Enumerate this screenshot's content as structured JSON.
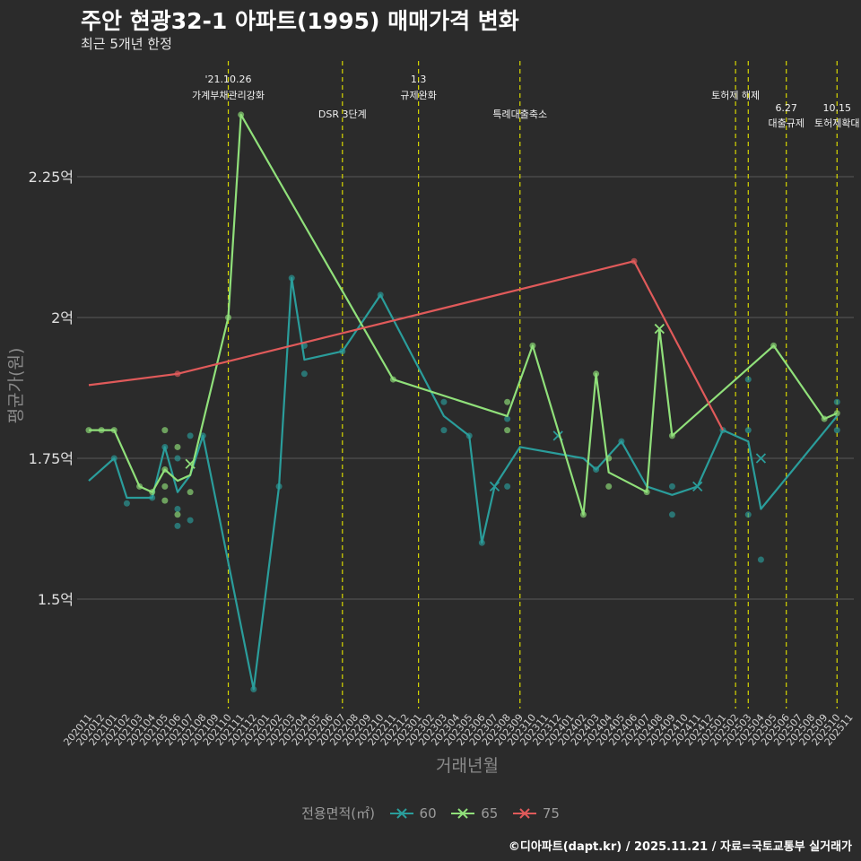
{
  "title": "주안 현광32-1 아파트(1995) 매매가격 변화",
  "subtitle": "최근 5개년 한정",
  "caption": "©디아파트(dapt.kr) / 2025.11.21 / 자료=국토교통부 실거래가",
  "legend": {
    "title": "전용면적(㎡)",
    "items": [
      {
        "label": "60",
        "color": "#2a9d9b"
      },
      {
        "label": "65",
        "color": "#90e07a"
      },
      {
        "label": "75",
        "color": "#e05a5a"
      }
    ]
  },
  "chart_data": {
    "type": "line",
    "title": "주안 현광32-1 아파트(1995) 매매가격 변화",
    "xlabel": "거래년월",
    "ylabel": "평균가(원)",
    "ylim": [
      1.3,
      2.48
    ],
    "yticks": [
      1.5,
      1.75,
      2.0,
      2.25
    ],
    "ytick_labels": [
      "1.5억",
      "1.75억",
      "2억",
      "2.25억"
    ],
    "categories": [
      "202011",
      "202012",
      "202101",
      "202102",
      "202103",
      "202104",
      "202105",
      "202106",
      "202107",
      "202108",
      "202109",
      "202110",
      "202111",
      "202112",
      "202201",
      "202202",
      "202203",
      "202204",
      "202205",
      "202206",
      "202207",
      "202208",
      "202209",
      "202210",
      "202211",
      "202212",
      "202301",
      "202302",
      "202303",
      "202304",
      "202305",
      "202306",
      "202307",
      "202308",
      "202309",
      "202310",
      "202311",
      "202312",
      "202401",
      "202402",
      "202403",
      "202404",
      "202405",
      "202406",
      "202407",
      "202408",
      "202409",
      "202410",
      "202411",
      "202412",
      "202501",
      "202502",
      "202503",
      "202504",
      "202505",
      "202506",
      "202507",
      "202508",
      "202509",
      "202510",
      "202511"
    ],
    "series": [
      {
        "name": "60",
        "color": "#2a9d9b",
        "line": [
          [
            "202011",
            1.71
          ],
          [
            "202101",
            1.75
          ],
          [
            "202102",
            1.68
          ],
          [
            "202104",
            1.68
          ],
          [
            "202105",
            1.77
          ],
          [
            "202106",
            1.69
          ],
          [
            "202107",
            1.72
          ],
          [
            "202108",
            1.79
          ],
          [
            "202112",
            1.34
          ],
          [
            "202202",
            1.7
          ],
          [
            "202203",
            2.07
          ],
          [
            "202204",
            1.925
          ],
          [
            "202207",
            1.94
          ],
          [
            "202210",
            2.04
          ],
          [
            "202303",
            1.825
          ],
          [
            "202305",
            1.79
          ],
          [
            "202306",
            1.6
          ],
          [
            "202307",
            1.7
          ],
          [
            "202309",
            1.77
          ],
          [
            "202402",
            1.75
          ],
          [
            "202403",
            1.73
          ],
          [
            "202405",
            1.78
          ],
          [
            "202407",
            1.7
          ],
          [
            "202409",
            1.685
          ],
          [
            "202411",
            1.7
          ],
          [
            "202501",
            1.8
          ],
          [
            "202503",
            1.78
          ],
          [
            "202504",
            1.66
          ],
          [
            "202510",
            1.825
          ]
        ],
        "points": [
          [
            "202101",
            1.75
          ],
          [
            "202102",
            1.67
          ],
          [
            "202104",
            1.68
          ],
          [
            "202105",
            1.77
          ],
          [
            "202106",
            1.75
          ],
          [
            "202106",
            1.66
          ],
          [
            "202106",
            1.63
          ],
          [
            "202107",
            1.79
          ],
          [
            "202107",
            1.64
          ],
          [
            "202108",
            1.79
          ],
          [
            "202112",
            1.34
          ],
          [
            "202202",
            1.7
          ],
          [
            "202203",
            2.07
          ],
          [
            "202204",
            1.95
          ],
          [
            "202204",
            1.9
          ],
          [
            "202207",
            1.94
          ],
          [
            "202210",
            2.04
          ],
          [
            "202303",
            1.85
          ],
          [
            "202303",
            1.8
          ],
          [
            "202305",
            1.79
          ],
          [
            "202306",
            1.6
          ],
          [
            "202308",
            1.82
          ],
          [
            "202308",
            1.7
          ],
          [
            "202403",
            1.73
          ],
          [
            "202405",
            1.78
          ],
          [
            "202409",
            1.7
          ],
          [
            "202409",
            1.65
          ],
          [
            "202501",
            1.8
          ],
          [
            "202503",
            1.89
          ],
          [
            "202503",
            1.8
          ],
          [
            "202503",
            1.65
          ],
          [
            "202504",
            1.57
          ],
          [
            "202510",
            1.85
          ],
          [
            "202510",
            1.8
          ]
        ],
        "cross": [
          [
            "202307",
            1.7
          ],
          [
            "202312",
            1.79
          ],
          [
            "202411",
            1.7
          ],
          [
            "202504",
            1.75
          ]
        ]
      },
      {
        "name": "65",
        "color": "#90e07a",
        "line": [
          [
            "202011",
            1.8
          ],
          [
            "202012",
            1.8
          ],
          [
            "202101",
            1.8
          ],
          [
            "202103",
            1.7
          ],
          [
            "202104",
            1.69
          ],
          [
            "202105",
            1.73
          ],
          [
            "202106",
            1.71
          ],
          [
            "202107",
            1.72
          ],
          [
            "202110",
            2.0
          ],
          [
            "202111",
            2.36
          ],
          [
            "202211",
            1.89
          ],
          [
            "202308",
            1.825
          ],
          [
            "202310",
            1.95
          ],
          [
            "202402",
            1.65
          ],
          [
            "202403",
            1.9
          ],
          [
            "202404",
            1.725
          ],
          [
            "202407",
            1.69
          ],
          [
            "202408",
            1.98
          ],
          [
            "202409",
            1.79
          ],
          [
            "202505",
            1.95
          ],
          [
            "202509",
            1.82
          ],
          [
            "202510",
            1.83
          ]
        ],
        "points": [
          [
            "202011",
            1.8
          ],
          [
            "202012",
            1.8
          ],
          [
            "202101",
            1.8
          ],
          [
            "202103",
            1.7
          ],
          [
            "202104",
            1.69
          ],
          [
            "202105",
            1.8
          ],
          [
            "202105",
            1.73
          ],
          [
            "202105",
            1.7
          ],
          [
            "202105",
            1.675
          ],
          [
            "202106",
            1.77
          ],
          [
            "202106",
            1.65
          ],
          [
            "202107",
            1.69
          ],
          [
            "202110",
            2.0
          ],
          [
            "202111",
            2.36
          ],
          [
            "202211",
            1.89
          ],
          [
            "202308",
            1.85
          ],
          [
            "202308",
            1.8
          ],
          [
            "202310",
            1.95
          ],
          [
            "202402",
            1.65
          ],
          [
            "202403",
            1.9
          ],
          [
            "202404",
            1.75
          ],
          [
            "202404",
            1.7
          ],
          [
            "202407",
            1.69
          ],
          [
            "202409",
            1.79
          ],
          [
            "202505",
            1.95
          ],
          [
            "202509",
            1.82
          ],
          [
            "202510",
            1.83
          ]
        ],
        "cross": [
          [
            "202107",
            1.74
          ],
          [
            "202408",
            1.98
          ]
        ]
      },
      {
        "name": "75",
        "color": "#e05a5a",
        "line": [
          [
            "202011",
            1.88
          ],
          [
            "202106",
            1.9
          ],
          [
            "202406",
            2.1
          ],
          [
            "202501",
            1.8
          ]
        ],
        "points": [
          [
            "202106",
            1.9
          ],
          [
            "202406",
            2.1
          ]
        ],
        "cross": []
      }
    ],
    "events": [
      {
        "month": "202110",
        "label1": "'21.10.26",
        "label2": "가계부채관리강화",
        "row": 0
      },
      {
        "month": "202207",
        "label1": "",
        "label2": "DSR 3단계",
        "row": 1
      },
      {
        "month": "202301",
        "label1": "1.3",
        "label2": "규제완화",
        "row": 0
      },
      {
        "month": "202309",
        "label1": "",
        "label2": "특례대출축소",
        "row": 1
      },
      {
        "month": "202502",
        "label1": "",
        "label2": "토허제 해제",
        "row": 0
      },
      {
        "month": "202503",
        "label1": "",
        "label2": "",
        "row": 0
      },
      {
        "month": "202506",
        "label1": "6.27",
        "label2": "대출규제",
        "row": 2
      },
      {
        "month": "202510",
        "label1": "10.15",
        "label2": "토허제확대",
        "row": 2
      }
    ]
  }
}
